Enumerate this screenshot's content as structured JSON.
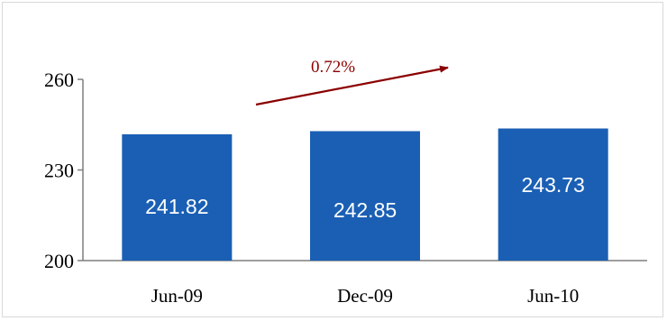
{
  "chart_data": {
    "type": "bar",
    "categories": [
      "Jun-09",
      "Dec-09",
      "Jun-10"
    ],
    "values": [
      241.82,
      242.85,
      243.73
    ],
    "data_labels": [
      "241.82",
      "242.85",
      "243.73"
    ],
    "ylim": [
      200,
      260
    ],
    "yticks": [
      200,
      230,
      260
    ],
    "grid": false,
    "legend": "none",
    "annotation": {
      "text": "0.72%",
      "type": "arrow",
      "color": "#8b0000"
    },
    "colors": {
      "bar": "#1a5fb4",
      "axis": "#7f7f7f",
      "annotation": "#8b0000"
    }
  }
}
